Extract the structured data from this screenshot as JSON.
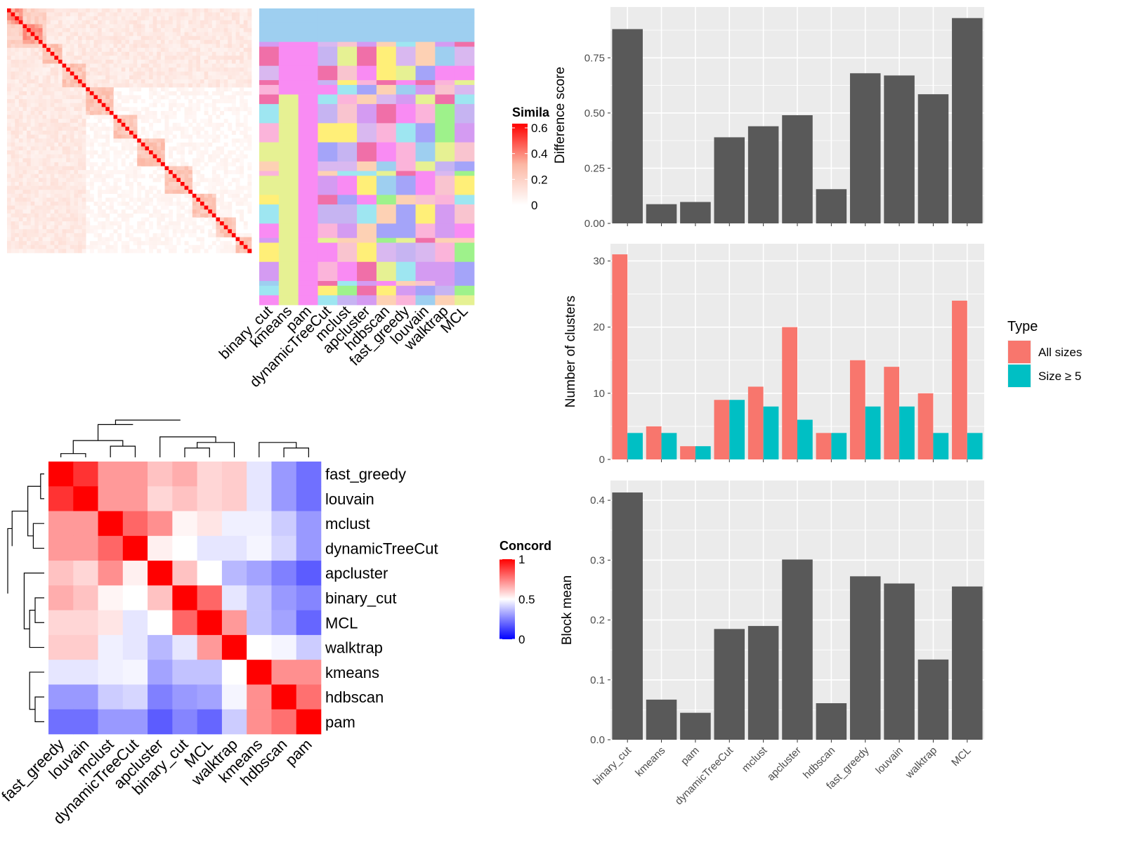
{
  "methods": [
    "binary_cut",
    "kmeans",
    "pam",
    "dynamicTreeCut",
    "mclust",
    "apcluster",
    "hdbscan",
    "fast_greedy",
    "louvain",
    "walktrap",
    "MCL"
  ],
  "similarity_legend": {
    "title": "Simila",
    "ticks": [
      "0.6",
      "0.4",
      "0.2",
      "0"
    ],
    "values": [
      0.6,
      0.4,
      0.2,
      0
    ]
  },
  "concordance_legend": {
    "title": "Concord",
    "ticks": [
      "1",
      "0.5",
      "0"
    ],
    "values": [
      1,
      0.5,
      0
    ]
  },
  "concordance_order": [
    "fast_greedy",
    "louvain",
    "mclust",
    "dynamicTreeCut",
    "apcluster",
    "binary_cut",
    "MCL",
    "walktrap",
    "kmeans",
    "hdbscan",
    "pam"
  ],
  "concordance_matrix": [
    [
      1.0,
      0.9,
      0.7,
      0.7,
      0.62,
      0.66,
      0.58,
      0.6,
      0.45,
      0.3,
      0.22
    ],
    [
      0.9,
      1.0,
      0.7,
      0.7,
      0.58,
      0.62,
      0.58,
      0.6,
      0.45,
      0.3,
      0.22
    ],
    [
      0.7,
      0.7,
      1.0,
      0.8,
      0.72,
      0.52,
      0.55,
      0.47,
      0.47,
      0.4,
      0.3
    ],
    [
      0.7,
      0.7,
      0.8,
      1.0,
      0.53,
      0.5,
      0.45,
      0.45,
      0.48,
      0.42,
      0.3
    ],
    [
      0.62,
      0.58,
      0.72,
      0.53,
      1.0,
      0.62,
      0.5,
      0.36,
      0.32,
      0.25,
      0.18
    ],
    [
      0.66,
      0.62,
      0.52,
      0.5,
      0.62,
      1.0,
      0.8,
      0.45,
      0.38,
      0.3,
      0.26
    ],
    [
      0.58,
      0.58,
      0.55,
      0.45,
      0.5,
      0.8,
      1.0,
      0.7,
      0.38,
      0.32,
      0.2
    ],
    [
      0.6,
      0.6,
      0.47,
      0.45,
      0.36,
      0.45,
      0.7,
      1.0,
      0.5,
      0.48,
      0.4
    ],
    [
      0.45,
      0.45,
      0.47,
      0.48,
      0.32,
      0.38,
      0.38,
      0.5,
      1.0,
      0.72,
      0.72
    ],
    [
      0.3,
      0.3,
      0.4,
      0.42,
      0.25,
      0.3,
      0.32,
      0.48,
      0.72,
      1.0,
      0.78
    ],
    [
      0.22,
      0.22,
      0.3,
      0.3,
      0.18,
      0.26,
      0.2,
      0.4,
      0.72,
      0.78,
      1.0
    ]
  ],
  "chart_data": [
    {
      "type": "bar",
      "ylabel": "Difference score",
      "categories": [
        "binary_cut",
        "kmeans",
        "pam",
        "dynamicTreeCut",
        "mclust",
        "apcluster",
        "hdbscan",
        "fast_greedy",
        "louvain",
        "walktrap",
        "MCL"
      ],
      "values": [
        0.88,
        0.087,
        0.097,
        0.39,
        0.44,
        0.49,
        0.155,
        0.68,
        0.67,
        0.585,
        0.93
      ],
      "ylim": [
        0,
        0.98
      ],
      "yticks": [
        "0.00",
        "0.25",
        "0.50",
        "0.75"
      ],
      "ytick_values": [
        0,
        0.25,
        0.5,
        0.75
      ],
      "grid": true
    },
    {
      "type": "bar",
      "ylabel": "Number of clusters",
      "categories": [
        "binary_cut",
        "kmeans",
        "pam",
        "dynamicTreeCut",
        "mclust",
        "apcluster",
        "hdbscan",
        "fast_greedy",
        "louvain",
        "walktrap",
        "MCL"
      ],
      "series": [
        {
          "name": "All sizes",
          "color": "#F8766D",
          "values": [
            31,
            5,
            2,
            9,
            11,
            20,
            4,
            15,
            14,
            10,
            24
          ]
        },
        {
          "name": "Size ≥ 5",
          "color": "#00BFC4",
          "values": [
            4,
            4,
            2,
            9,
            8,
            6,
            4,
            8,
            8,
            4,
            4
          ]
        }
      ],
      "ylim": [
        0,
        32.6
      ],
      "yticks": [
        "0",
        "10",
        "20",
        "30"
      ],
      "ytick_values": [
        0,
        10,
        20,
        30
      ],
      "legend": {
        "title": "Type",
        "position": "right"
      },
      "grid": true
    },
    {
      "type": "bar",
      "ylabel": "Block mean",
      "categories": [
        "binary_cut",
        "kmeans",
        "pam",
        "dynamicTreeCut",
        "mclust",
        "apcluster",
        "hdbscan",
        "fast_greedy",
        "louvain",
        "walktrap",
        "MCL"
      ],
      "values": [
        0.413,
        0.067,
        0.045,
        0.185,
        0.19,
        0.301,
        0.061,
        0.273,
        0.261,
        0.134,
        0.256
      ],
      "ylim": [
        0,
        0.433
      ],
      "yticks": [
        "0.0",
        "0.1",
        "0.2",
        "0.3",
        "0.4"
      ],
      "ytick_values": [
        0,
        0.1,
        0.2,
        0.3,
        0.4
      ],
      "grid": true
    }
  ]
}
